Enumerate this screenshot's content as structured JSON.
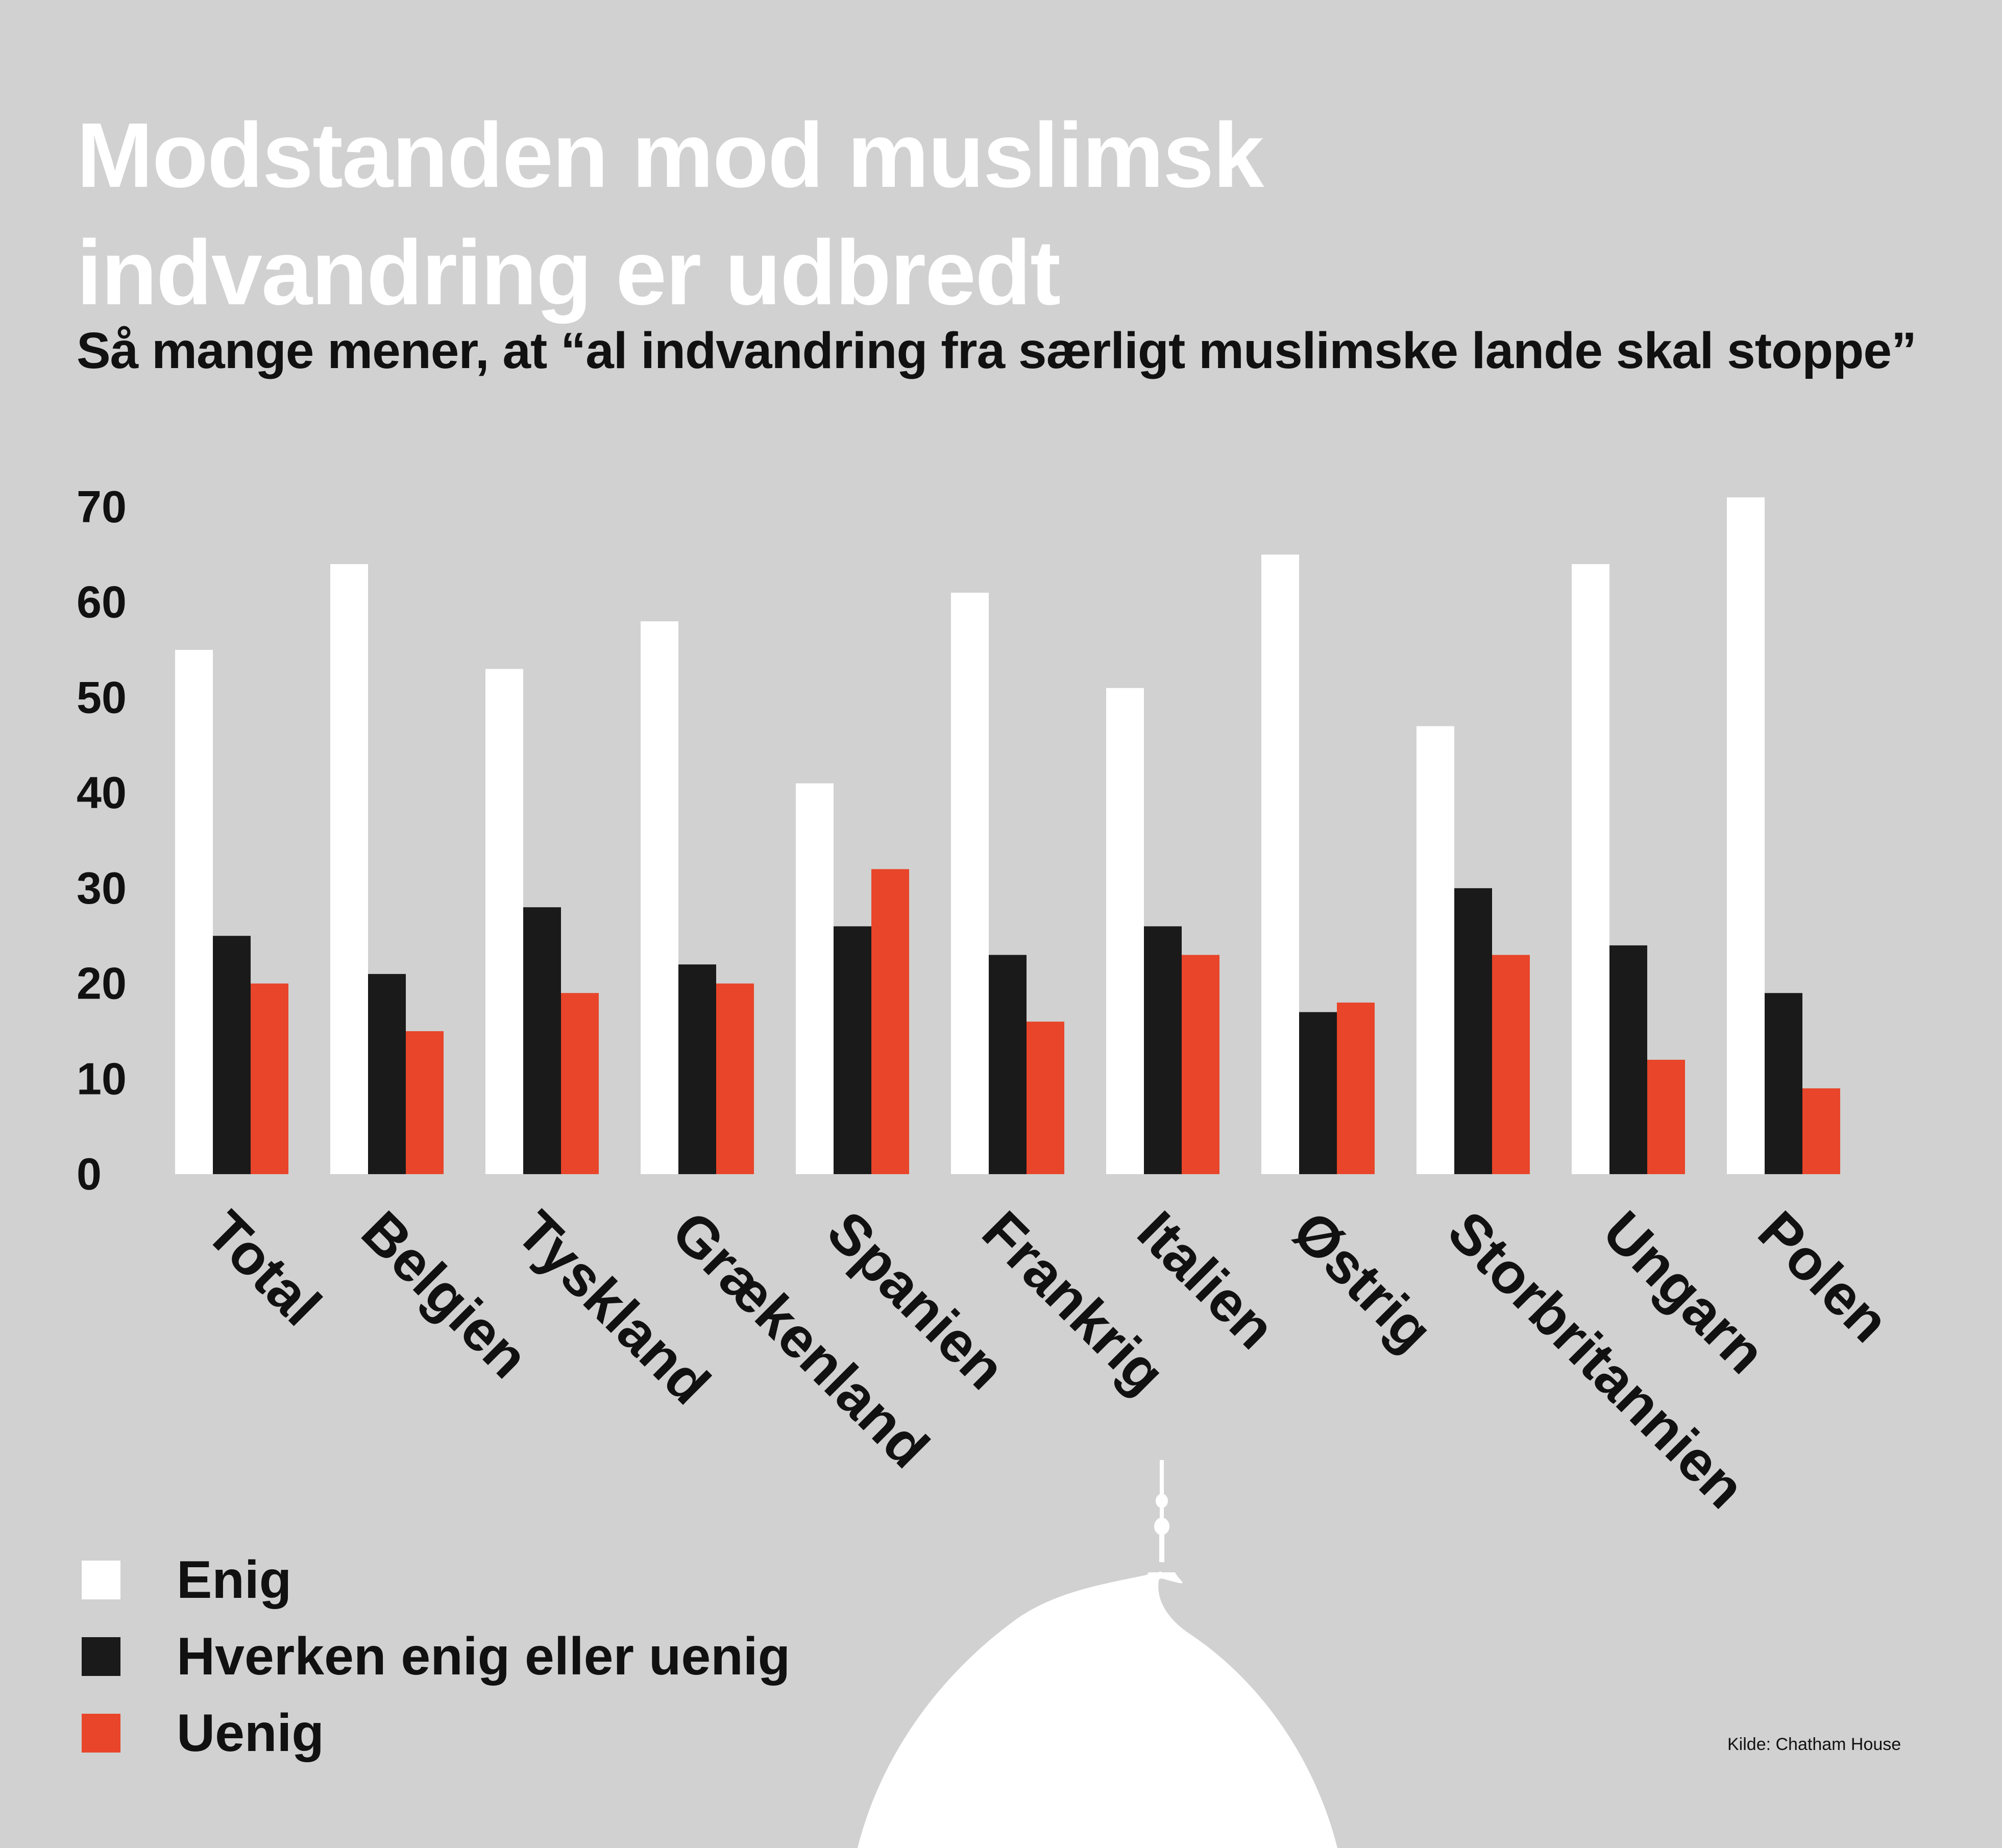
{
  "header": {
    "title_line1": "Modstanden mod muslimsk",
    "title_line2": "indvandring er udbredt",
    "subtitle": "Så mange mener, at “al indvandring fra særligt muslimske lande skal stoppe”"
  },
  "legend": {
    "items": [
      {
        "label": "Enig",
        "color": "#ffffff"
      },
      {
        "label": "Hverken enig eller uenig",
        "color": "#1a1a1a"
      },
      {
        "label": "Uenig",
        "color": "#e8452a"
      }
    ]
  },
  "source": "Kilde: Chatham House",
  "chart_data": {
    "type": "bar",
    "title": "Modstanden mod muslimsk indvandring er udbredt",
    "subtitle": "Så mange mener, at “al indvandring fra særligt muslimske lande skal stoppe”",
    "xlabel": "",
    "ylabel": "",
    "ylim": [
      0,
      70
    ],
    "yticks": [
      0,
      10,
      20,
      30,
      40,
      50,
      60,
      70
    ],
    "grid": false,
    "legend_position": "bottom-left",
    "categories": [
      "Total",
      "Belgien",
      "Tyskland",
      "Grækenland",
      "Spanien",
      "Frankrig",
      "Italien",
      "Østrig",
      "Storbritannien",
      "Ungarn",
      "Polen"
    ],
    "series": [
      {
        "name": "Enig",
        "color": "#ffffff",
        "values": [
          55,
          64,
          53,
          58,
          41,
          61,
          51,
          65,
          47,
          64,
          71
        ]
      },
      {
        "name": "Hverken enig eller uenig",
        "color": "#1a1a1a",
        "values": [
          25,
          21,
          28,
          22,
          26,
          23,
          26,
          17,
          30,
          24,
          19
        ]
      },
      {
        "name": "Uenig",
        "color": "#e8452a",
        "values": [
          20,
          15,
          19,
          20,
          32,
          16,
          23,
          18,
          23,
          12,
          9
        ]
      }
    ]
  }
}
